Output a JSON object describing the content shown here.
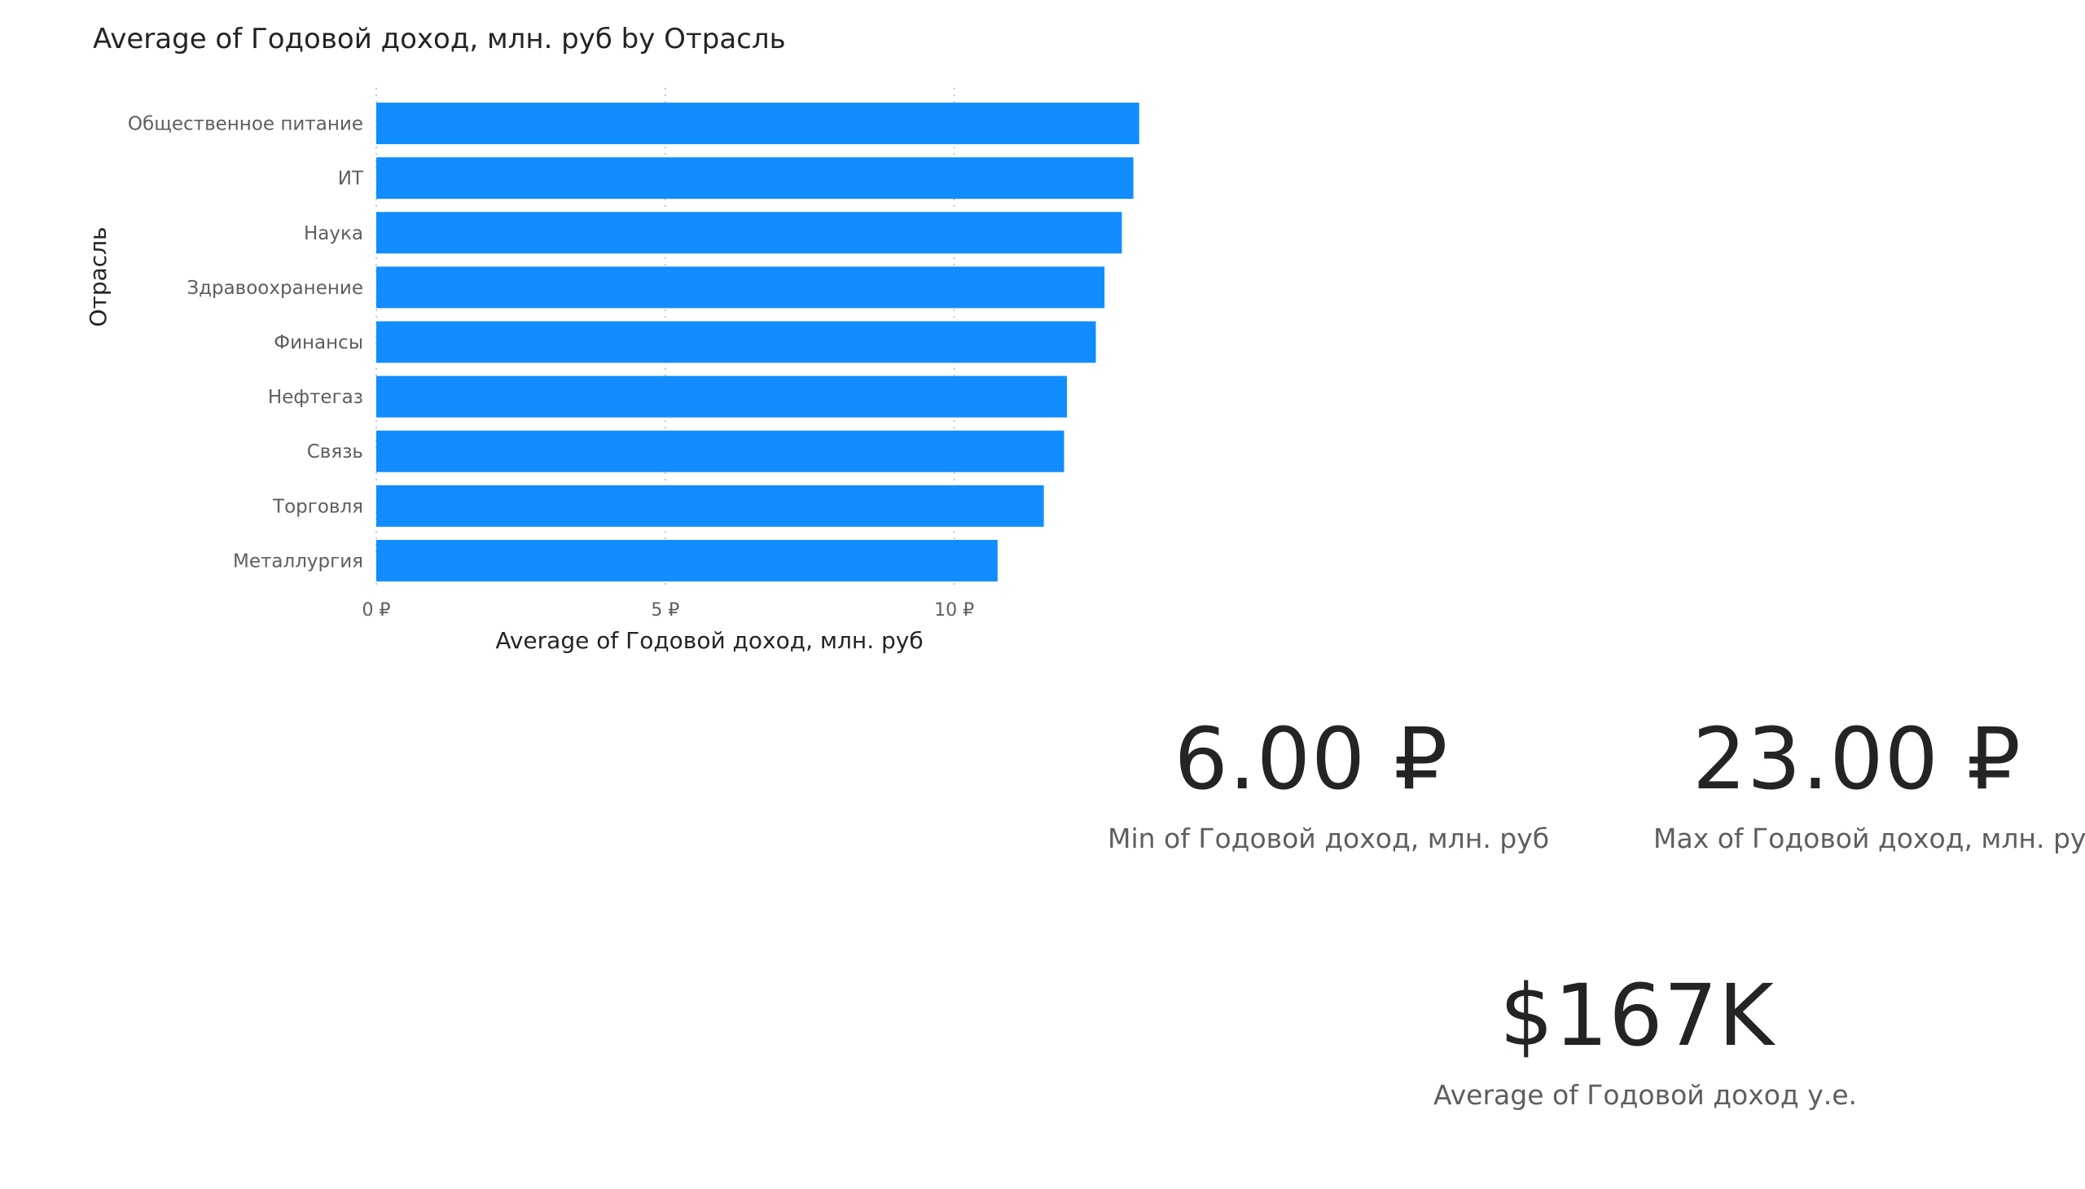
{
  "chart_data": {
    "type": "bar",
    "orientation": "horizontal",
    "title": "Average of Годовой доход, млн. руб by Отрасль",
    "xlabel": "Average of Годовой доход, млн. руб",
    "ylabel": "Отрасль",
    "categories": [
      "Общественное питание",
      "ИТ",
      "Наука",
      "Здравоохранение",
      "Финансы",
      "Нефтегаз",
      "Связь",
      "Торговля",
      "Металлургия"
    ],
    "values": [
      13.2,
      13.1,
      12.9,
      12.6,
      12.45,
      11.95,
      11.9,
      11.55,
      10.75
    ],
    "xlim": [
      0,
      13.5
    ],
    "x_ticks": [
      0,
      5,
      10
    ],
    "x_tick_labels": [
      "0 ₽",
      "5 ₽",
      "10 ₽"
    ],
    "grid": "vertical dotted",
    "colors": {
      "bar": "#118dff"
    }
  },
  "cards": {
    "min": {
      "value": "6.00 ₽",
      "label": "Min of Годовой доход, млн. руб"
    },
    "max": {
      "value": "23.00 ₽",
      "label": "Max of Годовой доход, млн. руб"
    },
    "avg": {
      "value": "$167K",
      "label": "Average of Годовой доход у.е."
    }
  },
  "colors": {
    "text": "#252423",
    "secondary_text": "#605e5c",
    "accent": "#118dff"
  }
}
